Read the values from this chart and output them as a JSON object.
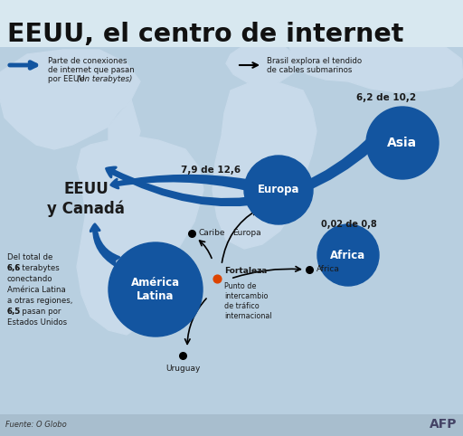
{
  "title": "EEUU, el centro de internet",
  "title_fontsize": 20,
  "bg_color": "#b8cfe0",
  "map_color": "#c8daea",
  "text_color": "#1a1a1a",
  "blue_node_color": "#1355a0",
  "white": "#ffffff",
  "legend1_label_line1": "Parte de conexiones",
  "legend1_label_line2": "de internet que pasan",
  "legend1_label_line3": "por EEUU ",
  "legend1_label_italic": "(en terabytes)",
  "legend2_label_line1": "Brasil explora el tendido",
  "legend2_label_line2": "de cables submarinos",
  "source": "Fuente: O Globo",
  "credit": "AFP",
  "stat_asia": "6,2 de 10,2",
  "stat_europa": "7,9 de 12,6",
  "stat_africa": "0,02 de 0,8",
  "eeuu_label": "EEUU\ny Canadá",
  "america_label": "América\nLatina",
  "europa_label": "Europa",
  "asia_label": "Asia",
  "africa_label": "Africa",
  "caribe_label": "Caribe",
  "fortaleza_label": "Fortaleza",
  "fortaleza_desc": "Punto de\nintercambio\nde tráfico\ninternacional",
  "uruguay_label": "Uruguay",
  "africa_point_label": "Africa",
  "latam_text_line1": "Del total de",
  "latam_text_bold1": "6,6",
  "latam_text_line2": " terabytes",
  "latam_text_line3": "conectando",
  "latam_text_line4": "América Latina",
  "latam_text_line5": "a otras regiones,",
  "latam_text_bold2": "6,5",
  "latam_text_line6": " pasan por",
  "latam_text_line7": "Estados Unidos"
}
